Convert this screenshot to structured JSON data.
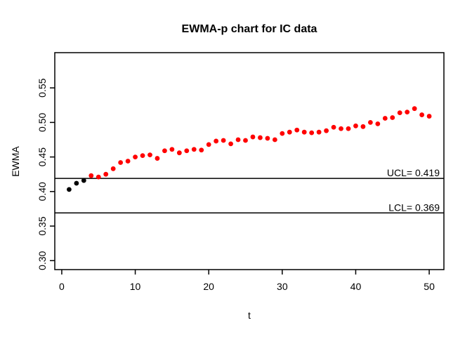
{
  "chart_data": {
    "type": "scatter",
    "title": "EWMA-p chart for IC data",
    "xlabel": "t",
    "ylabel": "EWMA",
    "x": [
      1,
      2,
      3,
      4,
      5,
      6,
      7,
      8,
      9,
      10,
      11,
      12,
      13,
      14,
      15,
      16,
      17,
      18,
      19,
      20,
      21,
      22,
      23,
      24,
      25,
      26,
      27,
      28,
      29,
      30,
      31,
      32,
      33,
      34,
      35,
      36,
      37,
      38,
      39,
      40,
      41,
      42,
      43,
      44,
      45,
      46,
      47,
      48,
      49,
      50
    ],
    "values": [
      0.403,
      0.412,
      0.416,
      0.423,
      0.421,
      0.425,
      0.433,
      0.442,
      0.444,
      0.45,
      0.452,
      0.453,
      0.448,
      0.459,
      0.461,
      0.456,
      0.459,
      0.461,
      0.46,
      0.468,
      0.473,
      0.474,
      0.469,
      0.475,
      0.474,
      0.479,
      0.478,
      0.477,
      0.475,
      0.484,
      0.486,
      0.489,
      0.486,
      0.485,
      0.486,
      0.488,
      0.493,
      0.491,
      0.491,
      0.495,
      0.494,
      0.5,
      0.498,
      0.506,
      0.507,
      0.514,
      0.515,
      0.52,
      0.511,
      0.509
    ],
    "in_control_count": 3,
    "colors": {
      "in_control": "#000000",
      "out_of_control": "#ff0000",
      "limit_line": "#000000",
      "background": "#ffffff"
    },
    "ucl": {
      "label": "UCL= 0.419",
      "value": 0.419
    },
    "lcl": {
      "label": "LCL= 0.369",
      "value": 0.369
    },
    "x_ticks": [
      0,
      10,
      20,
      30,
      40,
      50
    ],
    "y_ticks": [
      0.3,
      0.35,
      0.4,
      0.45,
      0.5,
      0.55
    ],
    "xlim": [
      -0.95,
      52.0
    ],
    "ylim": [
      0.287,
      0.601
    ],
    "grid": false,
    "legend": null,
    "point_style": "filled-circle"
  }
}
